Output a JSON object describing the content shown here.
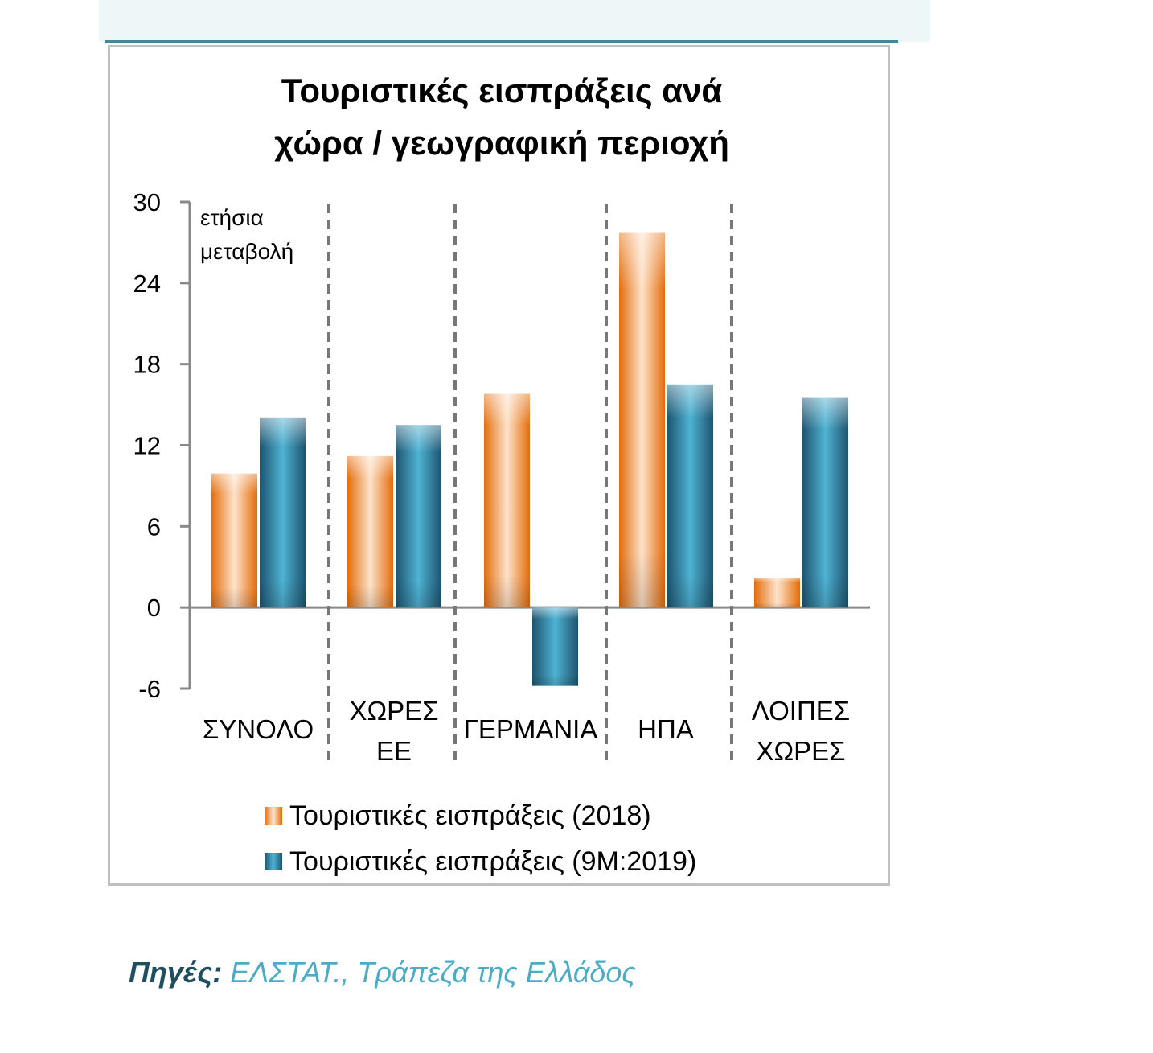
{
  "source": {
    "label": "Πηγές:",
    "text": "ΕΛΣΤΑΤ., Τράπεζα της Ελλάδος"
  },
  "colors": {
    "series_2018": "#e46c0a",
    "series_2019": "#1f6f8f",
    "header_band": "#eef7f8",
    "header_line": "#3f8a99",
    "source_label": "#1f4e5f",
    "source_text": "#4bacc6"
  },
  "chart_data": {
    "type": "bar",
    "title_lines": [
      "Τουριστικές εισπράξεις ανά",
      "χώρα / γεωγραφική περιοχή"
    ],
    "ylabel_lines": [
      "ετήσια",
      "μεταβολή"
    ],
    "ylim": [
      -6,
      30
    ],
    "yticks": [
      -6,
      0,
      6,
      12,
      18,
      24,
      30
    ],
    "categories": [
      [
        "ΣΥΝΟΛΟ"
      ],
      [
        "ΧΩΡΕΣ",
        "ΕΕ"
      ],
      [
        "ΓΕΡΜΑΝΙΑ"
      ],
      [
        "ΗΠΑ"
      ],
      [
        "ΛΟΙΠΕΣ",
        "ΧΩΡΕΣ"
      ]
    ],
    "series": [
      {
        "name": "Τουριστικές εισπράξεις (2018)",
        "values": [
          9.9,
          11.2,
          15.8,
          27.7,
          2.2
        ]
      },
      {
        "name": "Τουριστικές εισπράξεις (9M:2019)",
        "values": [
          14.0,
          13.5,
          -5.8,
          16.5,
          15.5
        ]
      }
    ],
    "legend": "bottom",
    "grid": false
  }
}
